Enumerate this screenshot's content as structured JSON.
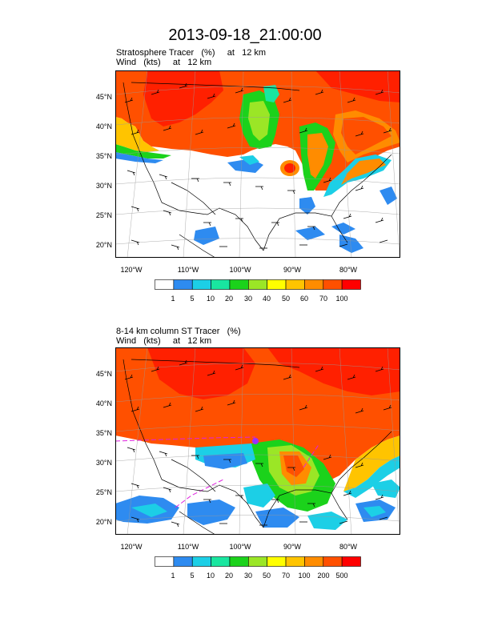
{
  "title": "2013-09-18_21:00:00",
  "panels": [
    {
      "subtitle_line1": "Stratosphere Tracer   (%)     at   12 km",
      "subtitle_line2": "Wind   (kts)     at   12 km",
      "lat_labels": [
        "45°N",
        "40°N",
        "35°N",
        "30°N",
        "25°N",
        "20°N"
      ],
      "lon_labels": [
        "120°W",
        "110°W",
        "100°W",
        "90°W",
        "80°W"
      ],
      "colorbar_labels": [
        "1",
        "5",
        "10",
        "20",
        "30",
        "40",
        "50",
        "60",
        "70",
        "100"
      ]
    },
    {
      "subtitle_line1": "8-14 km column ST Tracer   (%)",
      "subtitle_line2": "Wind   (kts)     at   12 km",
      "lat_labels": [
        "45°N",
        "40°N",
        "35°N",
        "30°N",
        "25°N",
        "20°N"
      ],
      "lon_labels": [
        "120°W",
        "110°W",
        "100°W",
        "90°W",
        "80°W"
      ],
      "colorbar_labels": [
        "1",
        "5",
        "10",
        "20",
        "30",
        "50",
        "70",
        "100",
        "200",
        "500"
      ]
    }
  ],
  "colorbar_colors": [
    "#ffffff",
    "#2e8bf0",
    "#1ccfe6",
    "#19e6a0",
    "#1bd21b",
    "#9be626",
    "#ffff00",
    "#ffc400",
    "#ff8c00",
    "#ff5000",
    "#ff0000"
  ],
  "colors": {
    "field_high": "#ff5000",
    "field_max": "#ff2000",
    "background": "#ffffff"
  }
}
